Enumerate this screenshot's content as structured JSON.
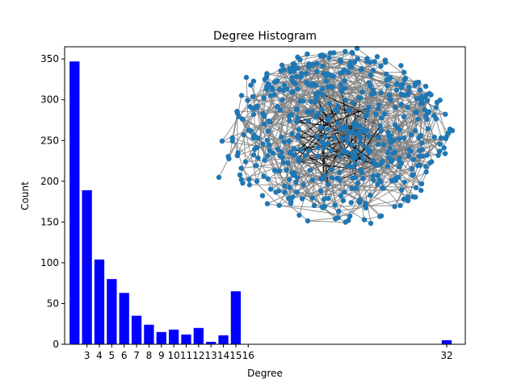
{
  "chart_data": {
    "type": "bar",
    "title": "Degree Histogram",
    "xlabel": "Degree",
    "ylabel": "Count",
    "ylim": [
      0,
      365
    ],
    "xlim": [
      1.2,
      33.5
    ],
    "yticks": [
      0,
      50,
      100,
      150,
      200,
      250,
      300,
      350
    ],
    "xticks": [
      3,
      4,
      5,
      6,
      7,
      8,
      9,
      10,
      11,
      12,
      13,
      14,
      15,
      16,
      32
    ],
    "bar_color": "#0000ff",
    "bars": [
      {
        "x": 2,
        "value": 347
      },
      {
        "x": 3,
        "value": 189
      },
      {
        "x": 4,
        "value": 104
      },
      {
        "x": 5,
        "value": 80
      },
      {
        "x": 6,
        "value": 63
      },
      {
        "x": 7,
        "value": 35
      },
      {
        "x": 8,
        "value": 24
      },
      {
        "x": 9,
        "value": 15
      },
      {
        "x": 10,
        "value": 18
      },
      {
        "x": 11,
        "value": 12
      },
      {
        "x": 12,
        "value": 20
      },
      {
        "x": 13,
        "value": 3
      },
      {
        "x": 14,
        "value": 11
      },
      {
        "x": 15,
        "value": 65
      },
      {
        "x": 32,
        "value": 5
      }
    ],
    "inset": {
      "type": "network-graph",
      "node_color": "#1f77b4",
      "edge_color": "#808080"
    }
  }
}
